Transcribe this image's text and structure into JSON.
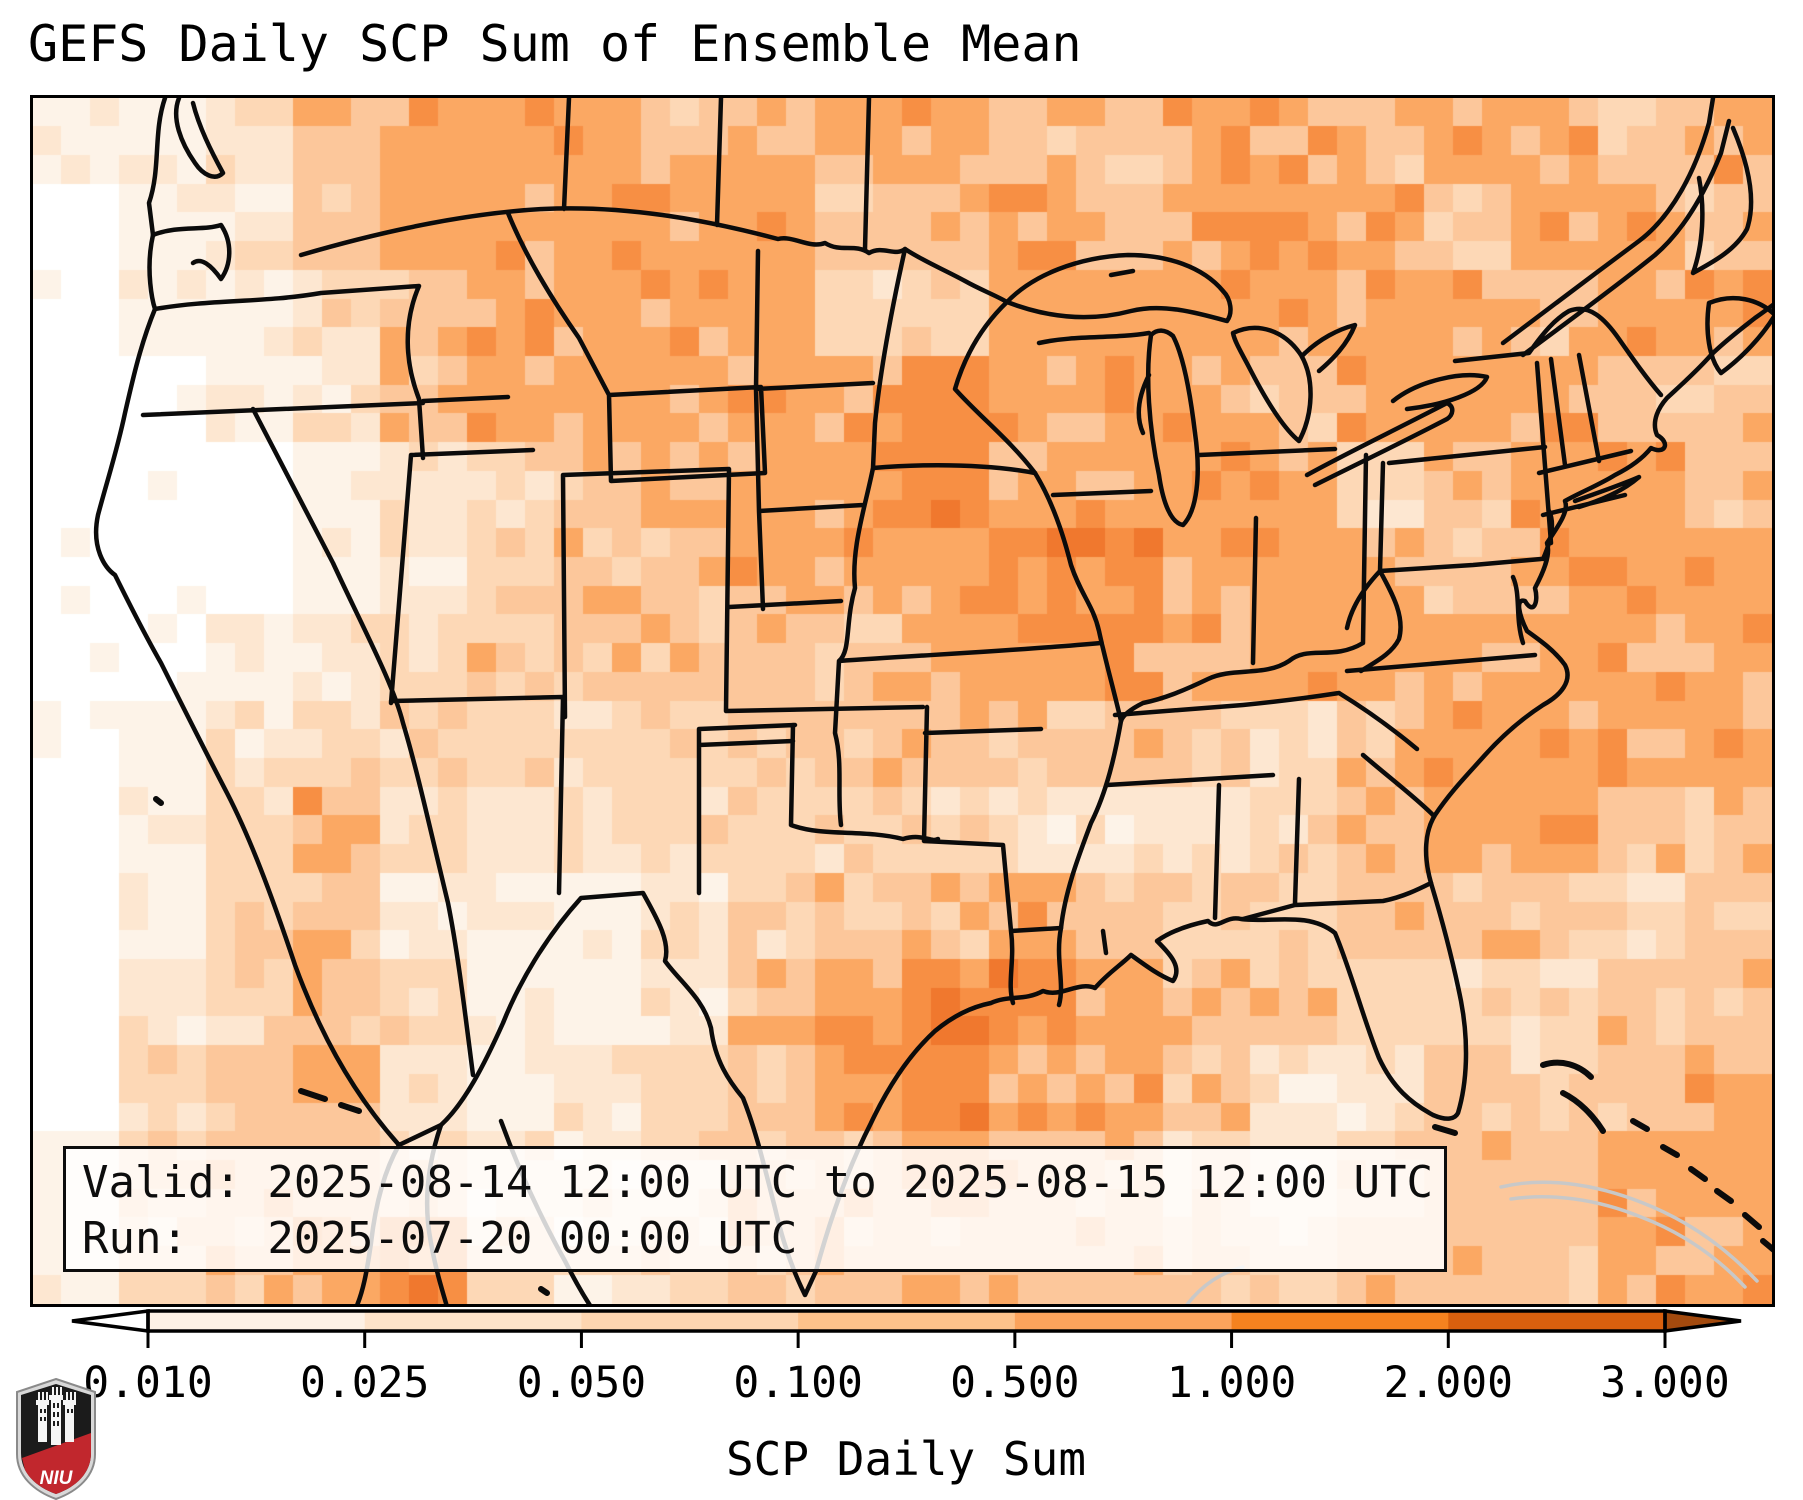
{
  "title": "GEFS Daily SCP Sum of Ensemble Mean",
  "info_box": {
    "line1": "Valid: 2025-08-14 12:00 UTC to 2025-08-15 12:00 UTC",
    "line2": "Run:   2025-07-20 00:00 UTC"
  },
  "colorbar": {
    "label": "SCP Daily Sum",
    "tick_labels": [
      "0.010",
      "0.025",
      "0.050",
      "0.100",
      "0.500",
      "1.000",
      "2.000",
      "3.000"
    ],
    "segment_colors": [
      "#fdf1e5",
      "#fde3c9",
      "#fdd5b0",
      "#fdc28b",
      "#fca35c",
      "#f5821f",
      "#d9600e"
    ],
    "under_color": "#ffffff",
    "over_color": "#a34a0e",
    "outline_color": "#000000"
  },
  "logo": {
    "text": "NIU",
    "shield_dark": "#1b1b1b",
    "shield_red": "#c1272d",
    "trim": "#d8d8d8"
  },
  "chart_data": {
    "type": "heatmap",
    "title": "GEFS Daily SCP Sum of Ensemble Mean",
    "colorbar_label": "SCP Daily Sum",
    "scale_values": [
      0.01,
      0.025,
      0.05,
      0.1,
      0.5,
      1.0,
      2.0,
      3.0
    ],
    "palette": [
      "#ffffff",
      "#fdf3e8",
      "#fde7d1",
      "#fdd8b6",
      "#fcc79b",
      "#fba863",
      "#f78f44",
      "#f0782e"
    ],
    "grid_levels": [
      "11245554555445545545",
      "01245555544545554554",
      "01134555533555555455",
      "00124555556555455544",
      "00012345556555534554",
      "00012344555665554555",
      "00123444445555555555",
      "01233333444444345555",
      "01353223333222345544",
      "01342112344543344434",
      "02343112456654433344",
      "03452123456554224345",
      "13443223445443234455",
      "13456323444444344455"
    ]
  }
}
